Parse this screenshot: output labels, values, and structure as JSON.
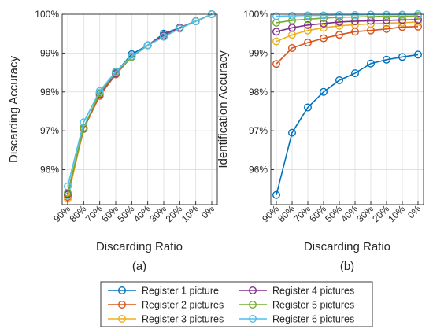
{
  "chart_data": [
    {
      "type": "line",
      "caption": "(a)",
      "xlabel": "Discarding Ratio",
      "ylabel": "Discarding Accuracy",
      "categories": [
        "90%",
        "80%",
        "70%",
        "60%",
        "50%",
        "40%",
        "30%",
        "20%",
        "10%",
        "0%"
      ],
      "ylim": [
        95.1,
        100
      ],
      "yticks": [
        96,
        97,
        98,
        99,
        100
      ],
      "ytick_labels": [
        "96%",
        "97%",
        "98%",
        "99%",
        "100%"
      ],
      "grid": true,
      "series": [
        {
          "name": "Register 1 picture",
          "color": "#0072BD",
          "values": [
            95.35,
            97.05,
            97.95,
            98.5,
            98.97,
            99.2,
            99.5,
            99.65,
            99.82,
            100
          ]
        },
        {
          "name": "Register 2 pictures",
          "color": "#D95319",
          "values": [
            95.3,
            97.05,
            97.9,
            98.45,
            98.9,
            99.2,
            99.45,
            99.65,
            99.82,
            100
          ]
        },
        {
          "name": "Register 3 pictures",
          "color": "#EDB120",
          "values": [
            95.25,
            97.08,
            97.95,
            98.48,
            98.9,
            99.2,
            99.45,
            99.65,
            99.82,
            100
          ]
        },
        {
          "name": "Register 4 pictures",
          "color": "#7E2F8E",
          "values": [
            95.38,
            97.08,
            97.95,
            98.48,
            98.92,
            99.2,
            99.45,
            99.65,
            99.82,
            100
          ]
        },
        {
          "name": "Register 5 pictures",
          "color": "#77AC30",
          "values": [
            95.4,
            97.08,
            97.97,
            98.5,
            98.9,
            99.2,
            99.42,
            99.63,
            99.82,
            100
          ]
        },
        {
          "name": "Register 6 pictures",
          "color": "#4DBEEE",
          "values": [
            95.57,
            97.22,
            98.02,
            98.52,
            98.92,
            99.2,
            99.42,
            99.63,
            99.82,
            100
          ]
        }
      ]
    },
    {
      "type": "line",
      "caption": "(b)",
      "xlabel": "Discarding Ratio",
      "ylabel": "Identification Accuracy",
      "categories": [
        "90%",
        "80%",
        "70%",
        "60%",
        "50%",
        "40%",
        "30%",
        "20%",
        "10%",
        "0%"
      ],
      "ylim": [
        95.1,
        100
      ],
      "yticks": [
        96,
        97,
        98,
        99,
        100
      ],
      "ytick_labels": [
        "96%",
        "97%",
        "98%",
        "99%",
        "100%"
      ],
      "grid": true,
      "series": [
        {
          "name": "Register 1 picture",
          "color": "#0072BD",
          "values": [
            95.35,
            96.95,
            97.6,
            98.0,
            98.3,
            98.48,
            98.73,
            98.83,
            98.9,
            98.96
          ]
        },
        {
          "name": "Register 2 pictures",
          "color": "#D95319",
          "values": [
            98.72,
            99.13,
            99.27,
            99.38,
            99.47,
            99.55,
            99.58,
            99.62,
            99.67,
            99.68
          ]
        },
        {
          "name": "Register 3 pictures",
          "color": "#EDB120",
          "values": [
            99.3,
            99.47,
            99.58,
            99.65,
            99.7,
            99.73,
            99.75,
            99.77,
            99.78,
            99.8
          ]
        },
        {
          "name": "Register 4 pictures",
          "color": "#7E2F8E",
          "values": [
            99.55,
            99.65,
            99.72,
            99.76,
            99.8,
            99.82,
            99.83,
            99.84,
            99.85,
            99.86
          ]
        },
        {
          "name": "Register 5 pictures",
          "color": "#77AC30",
          "values": [
            99.78,
            99.84,
            99.87,
            99.9,
            99.92,
            99.93,
            99.94,
            99.95,
            99.95,
            99.96
          ]
        },
        {
          "name": "Register 6 pictures",
          "color": "#4DBEEE",
          "values": [
            99.95,
            99.96,
            99.97,
            99.97,
            99.98,
            99.98,
            99.99,
            99.99,
            99.99,
            100
          ]
        }
      ]
    }
  ],
  "legend": {
    "placement": "bottom",
    "entries": [
      {
        "label": "Register 1 picture",
        "color": "#0072BD"
      },
      {
        "label": "Register 2 pictures",
        "color": "#D95319"
      },
      {
        "label": "Register 3 pictures",
        "color": "#EDB120"
      },
      {
        "label": "Register 4 pictures",
        "color": "#7E2F8E"
      },
      {
        "label": "Register 5 pictures",
        "color": "#77AC30"
      },
      {
        "label": "Register 6 pictures",
        "color": "#4DBEEE"
      }
    ]
  }
}
